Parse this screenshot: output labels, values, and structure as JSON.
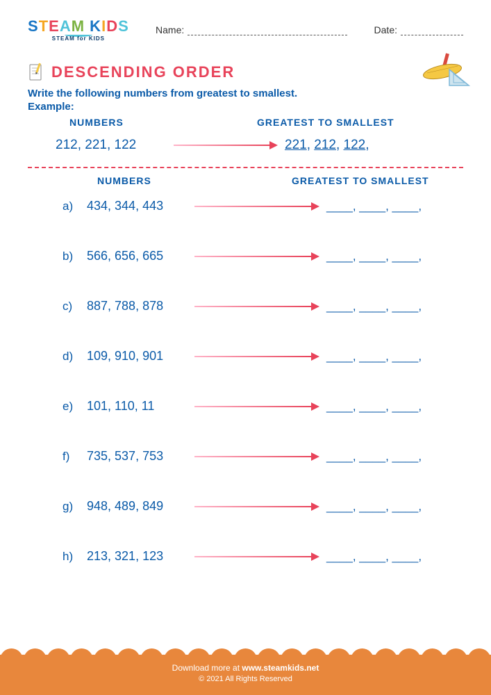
{
  "brand": {
    "main_letters": [
      "S",
      "T",
      "E",
      "A",
      "M",
      " ",
      "K",
      "I",
      "D",
      "S"
    ],
    "letter_colors": [
      "#1976c5",
      "#f5a623",
      "#e8435a",
      "#4fc3d9",
      "#7cb342",
      "#000",
      "#1976c5",
      "#f5a623",
      "#e8435a",
      "#4fc3d9"
    ],
    "sub": "STEAM for KIDS"
  },
  "header": {
    "name_label": "Name:",
    "date_label": "Date:"
  },
  "title": "DESCENDING ORDER",
  "instruction": "Write the following numbers from greatest to smallest.",
  "example_label": "Example:",
  "column_headers": {
    "numbers": "NUMBERS",
    "result": "GREATEST TO SMALLEST"
  },
  "example": {
    "numbers": "212, 221, 122",
    "result_parts": [
      "221",
      "212",
      "122"
    ]
  },
  "blank_pattern": "____,  ____,  ____,",
  "problems": [
    {
      "label": "a)",
      "numbers": "434, 344, 443"
    },
    {
      "label": "b)",
      "numbers": "566, 656, 665"
    },
    {
      "label": "c)",
      "numbers": "887, 788, 878"
    },
    {
      "label": "d)",
      "numbers": "109, 910, 901"
    },
    {
      "label": "e)",
      "numbers": "101, 110, 11"
    },
    {
      "label": "f)",
      "numbers": "735, 537, 753"
    },
    {
      "label": "g)",
      "numbers": "948, 489, 849"
    },
    {
      "label": "h)",
      "numbers": "213, 321, 123"
    }
  ],
  "footer": {
    "line1_prefix": "Download more at ",
    "link": "www.steamkids.net",
    "line2": "©  2021 All Rights Reserved"
  },
  "colors": {
    "title": "#e8435a",
    "text_primary": "#0a5aa8",
    "arrow_start": "#ffb3c8",
    "arrow_end": "#e8435a",
    "divider": "#e8435a",
    "footer_bg": "#e8873c",
    "ruler_yellow": "#f5c843",
    "pencil_red": "#d94a3f",
    "triangle_blue": "#7fb8d8"
  }
}
